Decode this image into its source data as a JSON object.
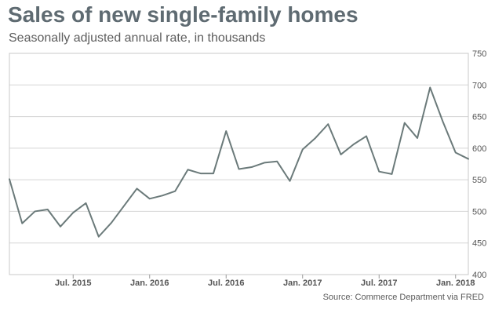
{
  "title": "Sales of new single-family homes",
  "subtitle": "Seasonally adjusted annual rate, in thousands",
  "source": "Source: Commerce Department via FRED",
  "colors": {
    "line": "#6b7a7a",
    "grid": "#d5d5d5",
    "title": "#5f6b72",
    "axis_text": "#555555"
  },
  "chart_data": {
    "type": "line",
    "title": "Sales of new single-family homes",
    "subtitle": "Seasonally adjusted annual rate, in thousands",
    "xlabel": "",
    "ylabel": "",
    "ylim": [
      400,
      750
    ],
    "yticks": [
      400,
      450,
      500,
      550,
      600,
      650,
      700,
      750
    ],
    "grid": true,
    "x_ticks": [
      {
        "label": "Jul. 2015",
        "index": 5
      },
      {
        "label": "Jan. 2016",
        "index": 11
      },
      {
        "label": "Jul. 2016",
        "index": 17
      },
      {
        "label": "Jan. 2017",
        "index": 23
      },
      {
        "label": "Jul. 2017",
        "index": 29
      },
      {
        "label": "Jan. 2018",
        "index": 35
      }
    ],
    "x": [
      "Jan 2015",
      "Feb 2015",
      "Mar 2015",
      "Apr 2015",
      "May 2015",
      "Jun 2015",
      "Jul 2015",
      "Aug 2015",
      "Sep 2015",
      "Oct 2015",
      "Nov 2015",
      "Dec 2015",
      "Jan 2016",
      "Feb 2016",
      "Mar 2016",
      "Apr 2016",
      "May 2016",
      "Jun 2016",
      "Jul 2016",
      "Aug 2016",
      "Sep 2016",
      "Oct 2016",
      "Nov 2016",
      "Dec 2016",
      "Jan 2017",
      "Feb 2017",
      "Mar 2017",
      "Apr 2017",
      "May 2017",
      "Jun 2017",
      "Jul 2017",
      "Aug 2017",
      "Sep 2017",
      "Oct 2017",
      "Nov 2017",
      "Dec 2017",
      "Jan 2018"
    ],
    "series": [
      {
        "name": "New single-family home sales",
        "values": [
          551,
          481,
          500,
          503,
          476,
          498,
          513,
          460,
          482,
          509,
          536,
          520,
          525,
          532,
          566,
          560,
          560,
          627,
          567,
          570,
          577,
          579,
          548,
          598,
          616,
          638,
          590,
          606,
          619,
          563,
          559,
          640,
          616,
          696,
          642,
          593,
          583
        ]
      }
    ]
  }
}
